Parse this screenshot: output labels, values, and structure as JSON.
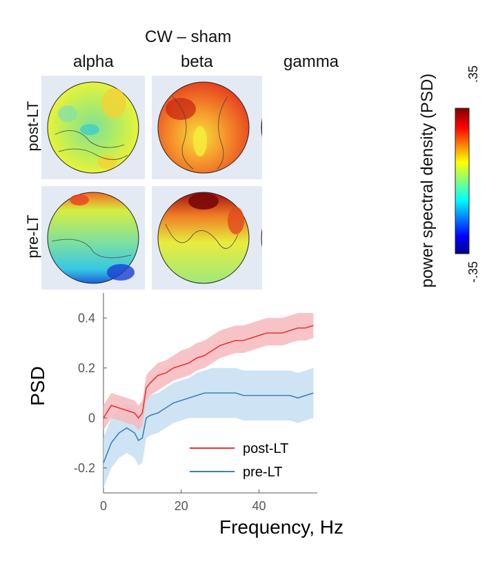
{
  "figure": {
    "title": "CW – sham",
    "bands": [
      "alpha",
      "beta",
      "gamma"
    ],
    "conditions": [
      "post-LT",
      "pre-LT"
    ],
    "colorbar": {
      "label": "power spectral density (PSD)",
      "max_label": ".35",
      "min_label": "-.35",
      "range": [
        -0.35,
        0.35
      ],
      "colormap": "jet"
    }
  },
  "chart_data": {
    "type": "line",
    "xlabel": "Frequency, Hz",
    "ylabel": "PSD",
    "xlim": [
      0,
      55
    ],
    "ylim": [
      -0.3,
      0.5
    ],
    "x_ticks": [
      0,
      20,
      40
    ],
    "y_ticks": [
      0.4,
      0.2,
      0,
      -0.2
    ],
    "x_tick_labels": [
      "0",
      "20",
      "40"
    ],
    "y_tick_labels": [
      "0.4",
      "0.2",
      "0",
      "-0.2"
    ],
    "legend_position": "bottom-right",
    "grid": false,
    "x": [
      0,
      2,
      4,
      6,
      8,
      9,
      10,
      11,
      12,
      14,
      16,
      18,
      20,
      22,
      24,
      26,
      28,
      30,
      32,
      34,
      36,
      38,
      40,
      42,
      44,
      46,
      48,
      50,
      52,
      54
    ],
    "series": [
      {
        "name": "post-LT",
        "color": "#e8332f",
        "band_color": "#f7b9bd",
        "values": [
          0.0,
          0.05,
          0.04,
          0.03,
          0.02,
          0.0,
          0.02,
          0.12,
          0.14,
          0.17,
          0.18,
          0.2,
          0.21,
          0.22,
          0.24,
          0.25,
          0.27,
          0.29,
          0.3,
          0.31,
          0.31,
          0.32,
          0.33,
          0.34,
          0.34,
          0.34,
          0.35,
          0.36,
          0.36,
          0.37
        ],
        "lower": [
          -0.05,
          0.0,
          -0.01,
          -0.02,
          -0.03,
          -0.05,
          -0.03,
          0.07,
          0.09,
          0.11,
          0.13,
          0.15,
          0.16,
          0.17,
          0.19,
          0.2,
          0.22,
          0.24,
          0.25,
          0.26,
          0.26,
          0.27,
          0.28,
          0.29,
          0.29,
          0.29,
          0.3,
          0.31,
          0.31,
          0.32
        ],
        "upper": [
          0.05,
          0.1,
          0.09,
          0.08,
          0.07,
          0.05,
          0.07,
          0.17,
          0.19,
          0.22,
          0.23,
          0.25,
          0.27,
          0.28,
          0.3,
          0.31,
          0.33,
          0.35,
          0.36,
          0.37,
          0.37,
          0.38,
          0.39,
          0.4,
          0.4,
          0.4,
          0.41,
          0.42,
          0.42,
          0.42
        ]
      },
      {
        "name": "pre-LT",
        "color": "#3a7ec0",
        "band_color": "#c5dff2",
        "values": [
          -0.18,
          -0.1,
          -0.06,
          -0.04,
          -0.06,
          -0.09,
          -0.08,
          0.0,
          0.01,
          0.02,
          0.04,
          0.06,
          0.07,
          0.08,
          0.09,
          0.1,
          0.1,
          0.1,
          0.1,
          0.1,
          0.09,
          0.09,
          0.09,
          0.09,
          0.09,
          0.09,
          0.09,
          0.08,
          0.09,
          0.1
        ],
        "lower": [
          -0.28,
          -0.2,
          -0.16,
          -0.14,
          -0.16,
          -0.19,
          -0.18,
          -0.08,
          -0.07,
          -0.06,
          -0.04,
          -0.02,
          -0.01,
          0.0,
          0.0,
          0.0,
          0.0,
          0.0,
          0.0,
          0.0,
          -0.01,
          -0.01,
          -0.01,
          -0.01,
          -0.01,
          -0.01,
          -0.01,
          -0.02,
          -0.01,
          0.0
        ],
        "upper": [
          -0.08,
          0.0,
          0.04,
          0.06,
          0.04,
          0.01,
          0.02,
          0.08,
          0.09,
          0.1,
          0.12,
          0.14,
          0.15,
          0.16,
          0.18,
          0.19,
          0.2,
          0.2,
          0.2,
          0.2,
          0.19,
          0.19,
          0.19,
          0.19,
          0.19,
          0.19,
          0.19,
          0.18,
          0.19,
          0.2
        ]
      }
    ]
  }
}
